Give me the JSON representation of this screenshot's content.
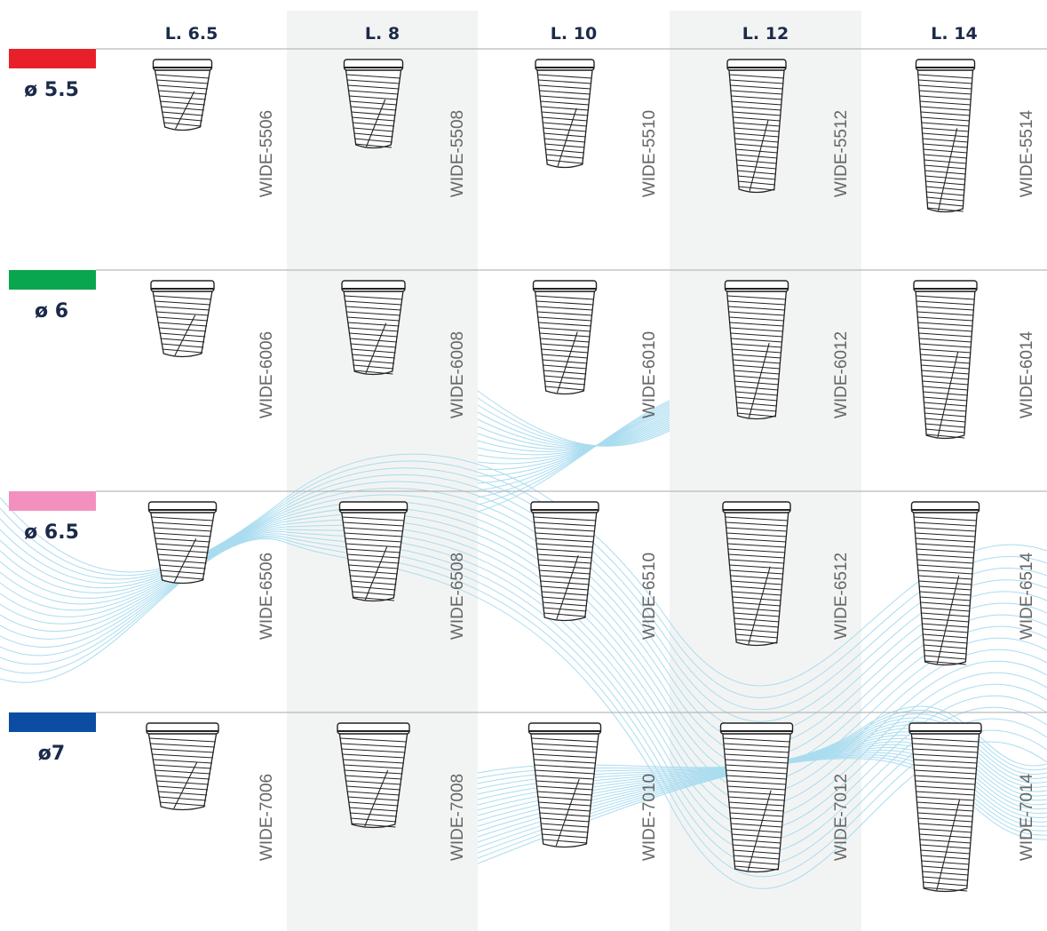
{
  "columns": [
    "L. 6.5",
    "L. 8",
    "L. 10",
    "L. 12",
    "L. 14"
  ],
  "rows": [
    {
      "label": "ø 5.5",
      "color": "#e8202a",
      "codes": [
        "WIDE-5506",
        "WIDE-5508",
        "WIDE-5510",
        "WIDE-5512",
        "WIDE-5514"
      ]
    },
    {
      "label": "ø 6",
      "color": "#0aa54f",
      "codes": [
        "WIDE-6006",
        "WIDE-6008",
        "WIDE-6010",
        "WIDE-6012",
        "WIDE-6014"
      ]
    },
    {
      "label": "ø 6.5",
      "color": "#f291bf",
      "codes": [
        "WIDE-6506",
        "WIDE-6508",
        "WIDE-6510",
        "WIDE-6512",
        "WIDE-6514"
      ]
    },
    {
      "label": "ø7",
      "color": "#0a4da2",
      "codes": [
        "WIDE-7006",
        "WIDE-7008",
        "WIDE-7010",
        "WIDE-7012",
        "WIDE-7014"
      ]
    }
  ]
}
